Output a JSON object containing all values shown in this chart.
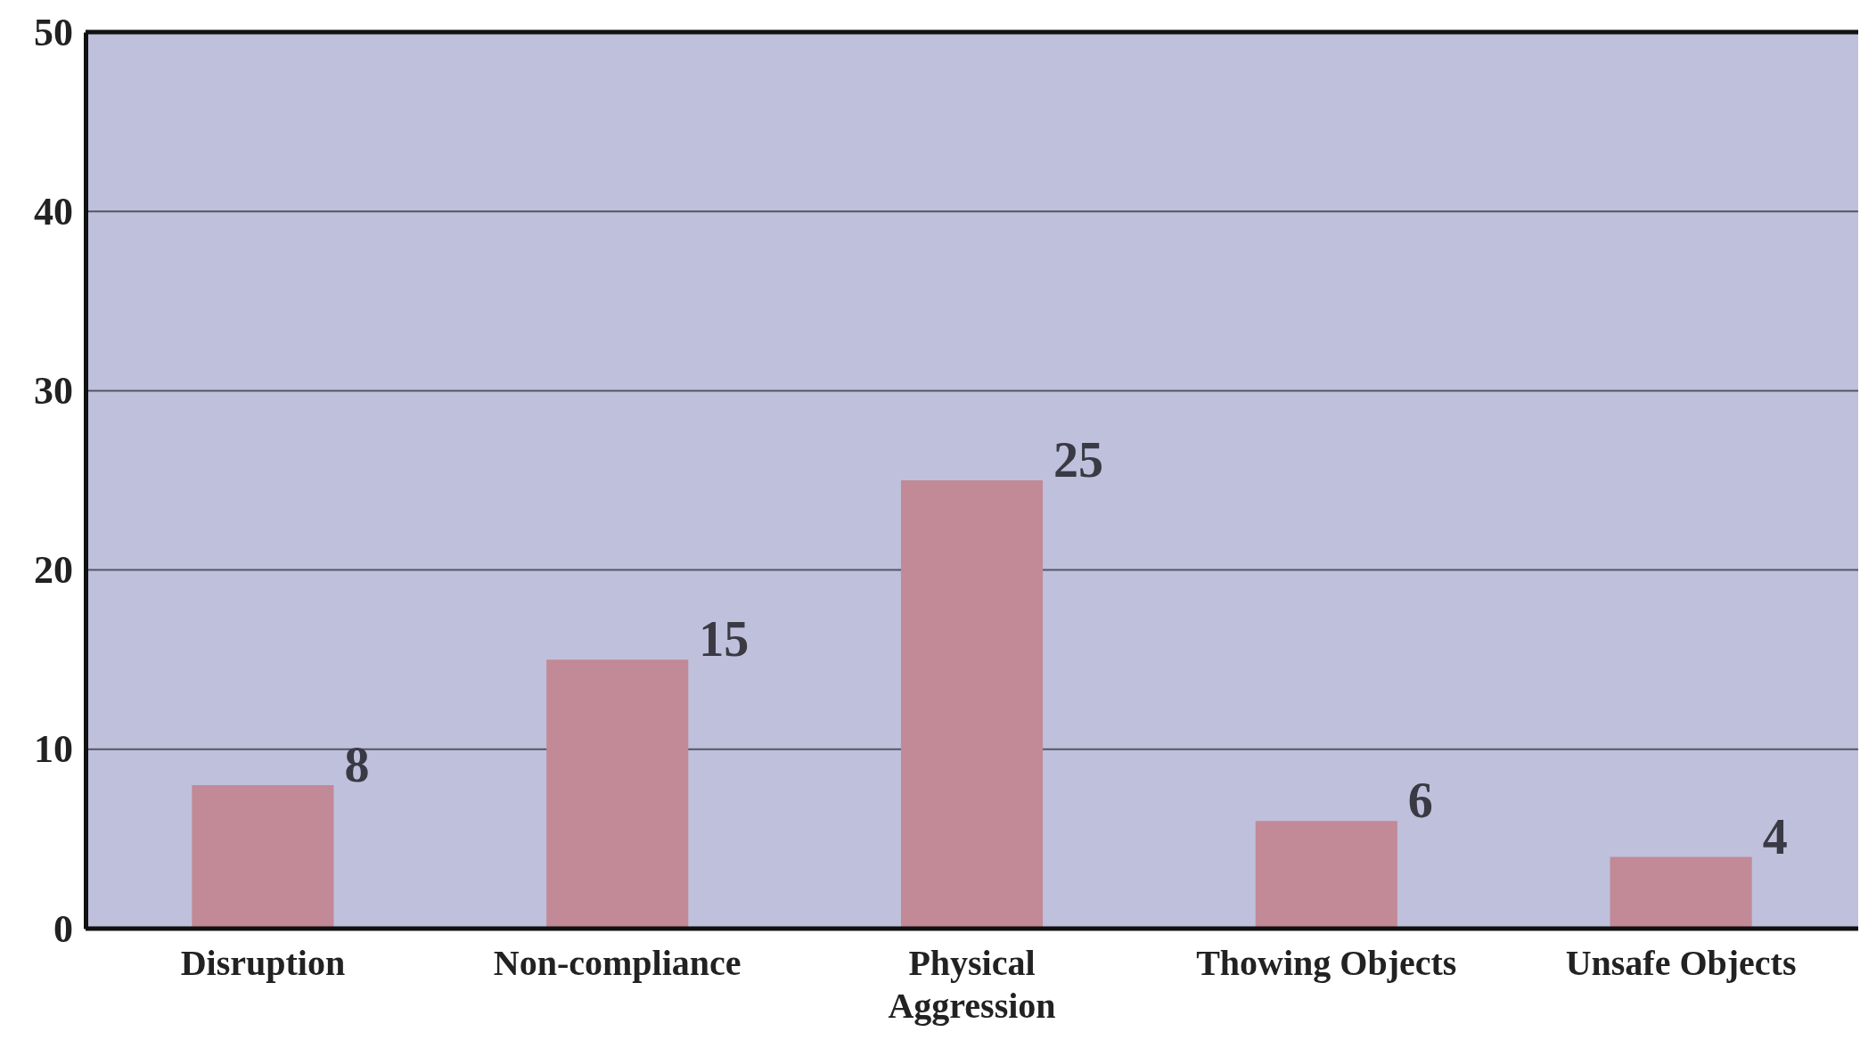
{
  "chart_data": {
    "type": "bar",
    "categories": [
      "Disruption",
      "Non-compliance",
      "Physical Aggression",
      "Thowing Objects",
      "Unsafe Objects"
    ],
    "values": [
      8,
      15,
      25,
      6,
      4
    ],
    "color": "#c18a96",
    "ylim": [
      0,
      50
    ],
    "yticks": [
      0,
      10,
      20,
      30,
      40,
      50
    ],
    "grid": "y",
    "data_labels": true
  }
}
